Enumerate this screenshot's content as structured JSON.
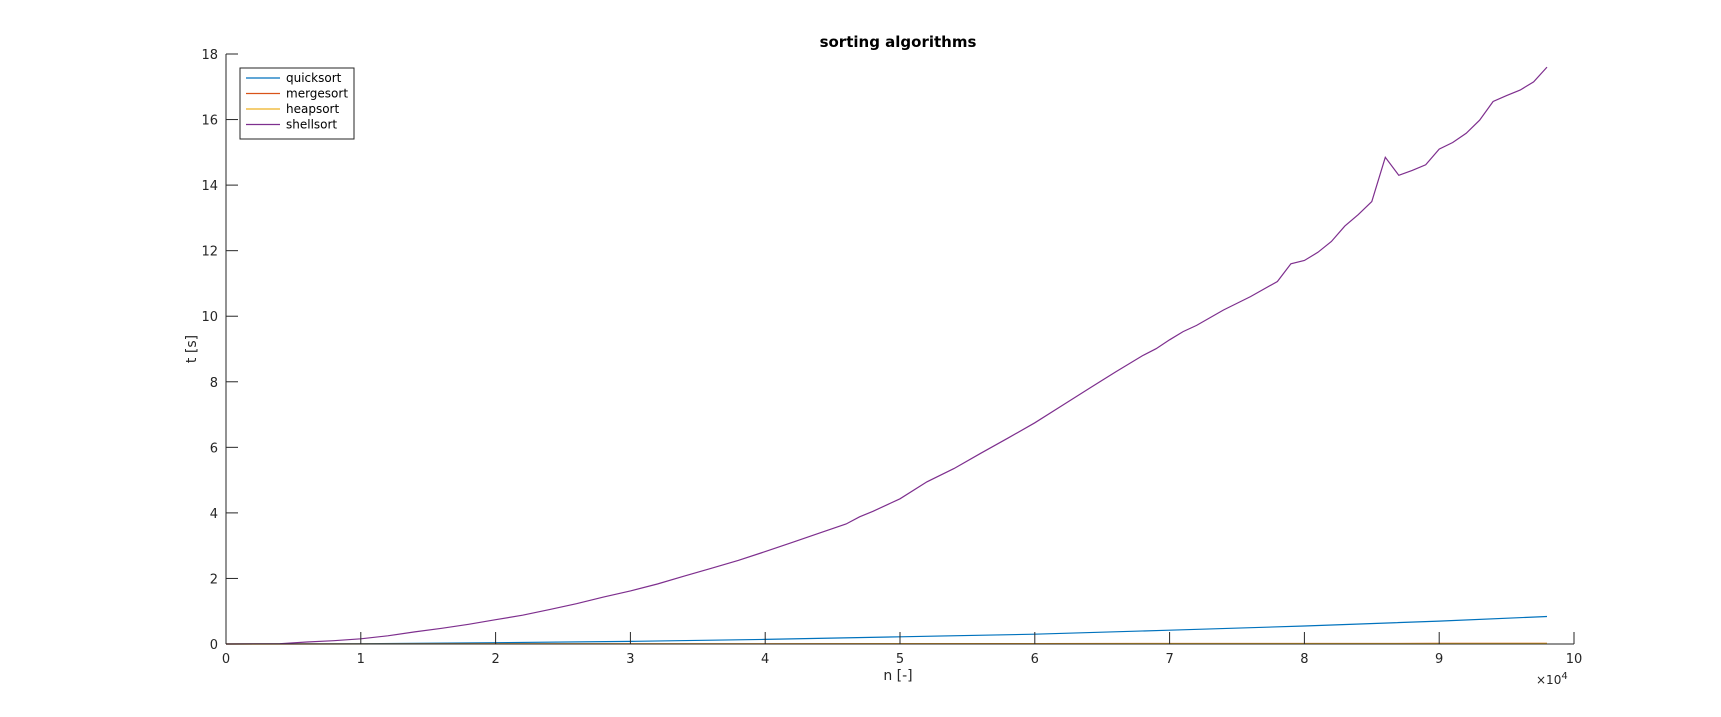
{
  "chart_data": {
    "type": "line",
    "title": "sorting algorithms",
    "xlabel": "n [-]",
    "ylabel": "t [s]",
    "xlim": [
      0,
      100000
    ],
    "ylim": [
      0,
      18
    ],
    "x_exponent_base": "×10",
    "x_exponent_power": "4",
    "xticks": [
      0,
      10000,
      20000,
      30000,
      40000,
      50000,
      60000,
      70000,
      80000,
      90000,
      100000
    ],
    "xtick_labels": [
      "0",
      "1",
      "2",
      "3",
      "4",
      "5",
      "6",
      "7",
      "8",
      "9",
      "10"
    ],
    "yticks": [
      0,
      2,
      4,
      6,
      8,
      10,
      12,
      14,
      16,
      18
    ],
    "ytick_labels": [
      "0",
      "2",
      "4",
      "6",
      "8",
      "10",
      "12",
      "14",
      "16",
      "18"
    ],
    "grid": false,
    "legend_location": "top-left",
    "series": [
      {
        "name": "quicksort",
        "color": "#0072BD",
        "x": [
          0,
          10000,
          20000,
          30000,
          40000,
          50000,
          60000,
          70000,
          80000,
          90000,
          98000
        ],
        "y": [
          0,
          0.01,
          0.04,
          0.08,
          0.14,
          0.22,
          0.3,
          0.42,
          0.55,
          0.7,
          0.84
        ]
      },
      {
        "name": "mergesort",
        "color": "#D95319",
        "x": [
          0,
          20000,
          40000,
          60000,
          70000,
          80000,
          90000,
          98000
        ],
        "y": [
          0,
          0.003,
          0.007,
          0.011,
          0.014,
          0.016,
          0.018,
          0.02
        ]
      },
      {
        "name": "heapsort",
        "color": "#EDB120",
        "x": [
          0,
          20000,
          40000,
          60000,
          80000,
          98000
        ],
        "y": [
          0,
          0.003,
          0.006,
          0.009,
          0.012,
          0.015
        ]
      },
      {
        "name": "shellsort",
        "color": "#7E2F8E",
        "x": [
          0,
          4000,
          6000,
          8000,
          10000,
          12000,
          14000,
          16000,
          18000,
          20000,
          22000,
          24000,
          26000,
          28000,
          30000,
          32000,
          34000,
          36000,
          38000,
          40000,
          42000,
          44000,
          46000,
          47000,
          48000,
          50000,
          52000,
          54000,
          56000,
          58000,
          60000,
          62000,
          64000,
          66000,
          68000,
          69000,
          70000,
          71000,
          72000,
          74000,
          76000,
          78000,
          79000,
          80000,
          81000,
          82000,
          83000,
          84000,
          85000,
          86000,
          87000,
          88000,
          89000,
          90000,
          91000,
          92000,
          93000,
          94000,
          95000,
          96000,
          97000,
          98000
        ],
        "y": [
          0,
          0.01,
          0.06,
          0.1,
          0.16,
          0.25,
          0.37,
          0.48,
          0.6,
          0.74,
          0.88,
          1.05,
          1.23,
          1.43,
          1.62,
          1.83,
          2.07,
          2.31,
          2.55,
          2.82,
          3.1,
          3.38,
          3.66,
          3.88,
          4.05,
          4.43,
          4.95,
          5.35,
          5.82,
          6.28,
          6.75,
          7.27,
          7.79,
          8.3,
          8.8,
          9.01,
          9.28,
          9.53,
          9.72,
          10.19,
          10.6,
          11.06,
          11.6,
          11.7,
          11.95,
          12.28,
          12.75,
          13.1,
          13.5,
          14.85,
          14.3,
          14.45,
          14.62,
          15.1,
          15.3,
          15.58,
          15.98,
          16.55,
          16.73,
          16.9,
          17.15,
          17.6
        ]
      }
    ]
  }
}
